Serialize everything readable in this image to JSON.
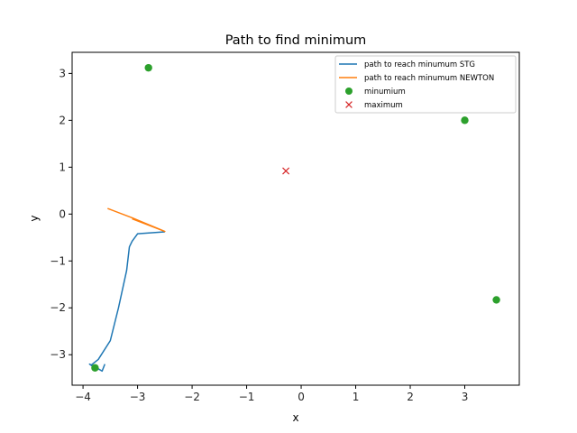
{
  "chart_data": {
    "type": "line",
    "title": "Path to find minimum",
    "xlabel": "x",
    "ylabel": "y",
    "xlim": [
      -4.2,
      4.0
    ],
    "ylim": [
      -3.65,
      3.45
    ],
    "xticks": [
      -4,
      -3,
      -2,
      -1,
      0,
      1,
      2,
      3
    ],
    "xtick_labels": [
      "−4",
      "−3",
      "−2",
      "−1",
      "0",
      "1",
      "2",
      "3"
    ],
    "yticks": [
      -3,
      -2,
      -1,
      0,
      1,
      2,
      3
    ],
    "ytick_labels": [
      "−3",
      "−2",
      "−1",
      "0",
      "1",
      "2",
      "3"
    ],
    "grid": false,
    "legend_position": "top-right",
    "series": [
      {
        "name": "path to reach minumum STG",
        "kind": "line",
        "color": "#1f77b4",
        "x": [
          -3.6,
          -3.65,
          -3.72,
          -3.82,
          -3.88,
          -3.85,
          -3.72,
          -3.5,
          -3.35,
          -3.2,
          -3.15,
          -3.1,
          -3.0,
          -2.5
        ],
        "y": [
          -3.2,
          -3.35,
          -3.3,
          -3.25,
          -3.2,
          -3.22,
          -3.1,
          -2.7,
          -2.0,
          -1.2,
          -0.7,
          -0.58,
          -0.42,
          -0.38
        ]
      },
      {
        "name": "path to reach minumum NEWTON",
        "kind": "line",
        "color": "#ff7f0e",
        "x": [
          -3.55,
          -3.1,
          -2.5,
          -3.1
        ],
        "y": [
          0.12,
          -0.08,
          -0.37,
          -0.1
        ]
      },
      {
        "name": "minumium",
        "kind": "scatter",
        "marker": "circle",
        "color": "#2ca02c",
        "x": [
          -2.8,
          3.0,
          3.58,
          -3.78
        ],
        "y": [
          3.12,
          2.0,
          -1.83,
          -3.28
        ]
      },
      {
        "name": "maximum",
        "kind": "scatter",
        "marker": "x",
        "color": "#d62728",
        "x": [
          -0.28
        ],
        "y": [
          0.92
        ]
      }
    ]
  }
}
